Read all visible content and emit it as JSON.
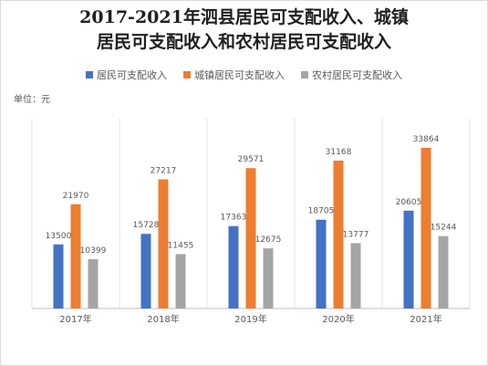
{
  "title_lines": [
    "2017-2021年泗县居民可支配收入、城镇",
    "居民可支配收入和农村居民可支配收入"
  ],
  "unit_label": "单位：元",
  "chart_data": {
    "type": "bar",
    "categories": [
      "2017年",
      "2018年",
      "2019年",
      "2020年",
      "2021年"
    ],
    "series": [
      {
        "name": "居民可支配收入",
        "color": "#4472c4",
        "values": [
          13500,
          15728,
          17363,
          18705,
          20605
        ]
      },
      {
        "name": "城镇居民可支配收入",
        "color": "#ed7d31",
        "values": [
          21970,
          27217,
          29571,
          31168,
          33864
        ]
      },
      {
        "name": "农村居民可支配收入",
        "color": "#a5a5a5",
        "values": [
          10399,
          11455,
          12675,
          13777,
          15244
        ]
      }
    ],
    "ylim": [
      0,
      40000
    ],
    "legend_position": "top",
    "grid": "vertical-category-separators"
  }
}
